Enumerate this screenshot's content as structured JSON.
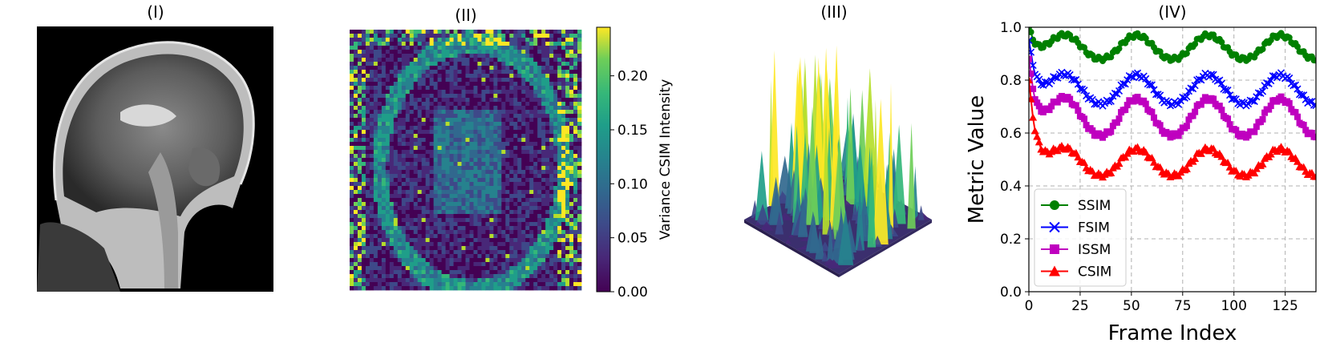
{
  "panels": {
    "p1": {
      "title": "(I)"
    },
    "p2": {
      "title": "(II)",
      "colorbar": {
        "label": "Variance CSIM Intensity",
        "ticks": [
          "0.00",
          "0.05",
          "0.10",
          "0.15",
          "0.20"
        ],
        "range": [
          0,
          0.245
        ],
        "colormap": "viridis"
      }
    },
    "p3": {
      "title": "(III)"
    },
    "p4": {
      "title": "(IV)"
    }
  },
  "chart_data": {
    "type": "line",
    "xlabel": "Frame Index",
    "ylabel": "Metric Value",
    "xlim": [
      0,
      140
    ],
    "ylim": [
      0,
      1.0
    ],
    "xticks": [
      0,
      25,
      50,
      75,
      100,
      125
    ],
    "yticks": [
      0.0,
      0.2,
      0.4,
      0.6,
      0.8,
      1.0
    ],
    "ytick_labels": [
      "0.0",
      "0.2",
      "0.4",
      "0.6",
      "0.8",
      "1.0"
    ],
    "grid": true,
    "legend": "bottom-left",
    "period": 35,
    "series": [
      {
        "name": "SSIM",
        "color": "#008000",
        "marker": "circle",
        "start": 1.0,
        "base": 0.88,
        "peak": 0.97
      },
      {
        "name": "FSIM",
        "color": "#0000ff",
        "marker": "x",
        "start": 0.95,
        "base": 0.71,
        "peak": 0.82
      },
      {
        "name": "ISSM",
        "color": "#bf00bf",
        "marker": "square",
        "start": 0.88,
        "base": 0.59,
        "peak": 0.73
      },
      {
        "name": "CSIM",
        "color": "#ff0000",
        "marker": "triangle",
        "start": 0.8,
        "base": 0.44,
        "peak": 0.54
      }
    ]
  }
}
